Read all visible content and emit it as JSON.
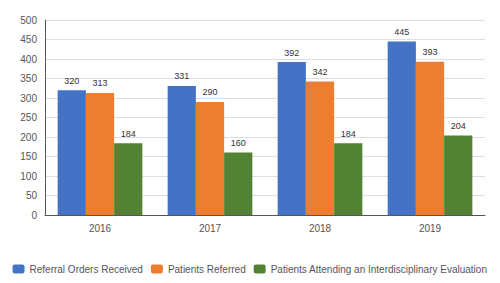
{
  "chart_data": {
    "type": "bar",
    "categories": [
      "2016",
      "2017",
      "2018",
      "2019"
    ],
    "series": [
      {
        "name": "Referral Orders Received",
        "color": "#4472C4",
        "values": [
          320,
          331,
          392,
          445
        ]
      },
      {
        "name": "Patients Referred",
        "color": "#ED7D31",
        "values": [
          313,
          290,
          342,
          393
        ]
      },
      {
        "name": "Patients Attending an Interdisciplinary Evaluation",
        "color": "#548235",
        "values": [
          184,
          160,
          184,
          204
        ]
      }
    ],
    "ylim": [
      0,
      500
    ],
    "yticks": [
      0,
      50,
      100,
      150,
      200,
      250,
      300,
      350,
      400,
      450,
      500
    ],
    "grid": true,
    "legend": "bottom",
    "data_labels": true
  }
}
